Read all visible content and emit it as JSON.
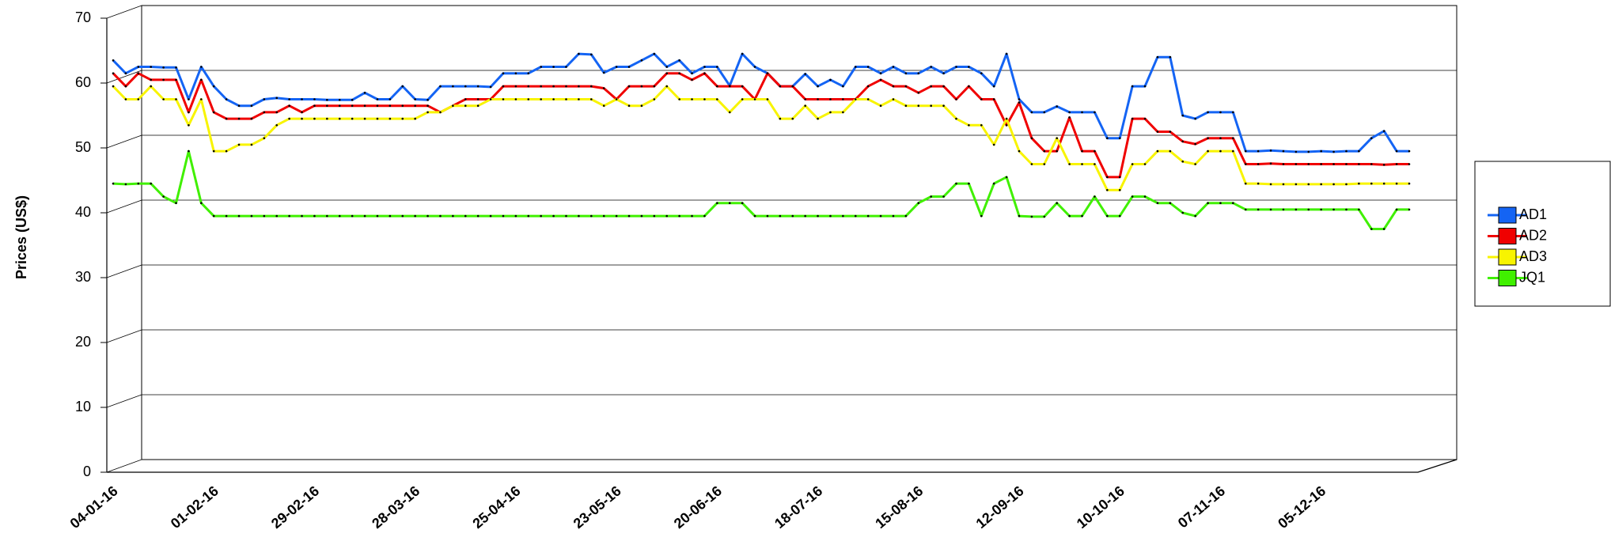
{
  "chart_data": {
    "type": "line",
    "y_label": "Prices (US$)",
    "categories": [
      "04-01-16",
      null,
      null,
      null,
      null,
      null,
      null,
      null,
      "01-02-16",
      null,
      null,
      null,
      null,
      null,
      null,
      null,
      "29-02-16",
      null,
      null,
      null,
      null,
      null,
      null,
      null,
      "28-03-16",
      null,
      null,
      null,
      null,
      null,
      null,
      null,
      "25-04-16",
      null,
      null,
      null,
      null,
      null,
      null,
      null,
      "23-05-16",
      null,
      null,
      null,
      null,
      null,
      null,
      null,
      "20-06-16",
      null,
      null,
      null,
      null,
      null,
      null,
      null,
      "18-07-16",
      null,
      null,
      null,
      null,
      null,
      null,
      null,
      "15-08-16",
      null,
      null,
      null,
      null,
      null,
      null,
      null,
      "12-09-16",
      null,
      null,
      null,
      null,
      null,
      null,
      null,
      "10-10-16",
      null,
      null,
      null,
      null,
      null,
      null,
      null,
      "07-11-16",
      null,
      null,
      null,
      null,
      null,
      null,
      null,
      "05-12-16",
      null,
      null,
      null,
      null,
      null,
      null,
      null
    ],
    "series": [
      {
        "name": "AD1",
        "color": "#1464f4",
        "values": [
          63.5,
          61.5,
          62.5,
          62.5,
          62.4,
          62.4,
          57.5,
          62.5,
          59.5,
          57.5,
          56.5,
          56.5,
          57.5,
          57.7,
          57.5,
          57.5,
          57.5,
          57.4,
          57.4,
          57.4,
          58.5,
          57.5,
          57.5,
          59.5,
          57.5,
          57.4,
          59.5,
          59.5,
          59.5,
          59.5,
          59.4,
          61.5,
          61.5,
          61.5,
          62.5,
          62.5,
          62.5,
          64.5,
          64.4,
          61.6,
          62.5,
          62.5,
          63.5,
          64.5,
          62.5,
          63.5,
          61.5,
          62.5,
          62.5,
          59.6,
          64.5,
          62.5,
          61.5,
          59.5,
          59.5,
          61.4,
          59.5,
          60.5,
          59.5,
          62.5,
          62.5,
          61.5,
          62.5,
          61.5,
          61.5,
          62.5,
          61.5,
          62.5,
          62.5,
          61.5,
          59.5,
          64.5,
          57.5,
          55.5,
          55.5,
          56.4,
          55.5,
          55.5,
          55.5,
          51.5,
          51.5,
          59.5,
          59.5,
          64.0,
          64.0,
          55.0,
          54.5,
          55.5,
          55.5,
          55.5,
          49.5,
          49.5,
          49.6,
          49.5,
          49.4,
          49.4,
          49.5,
          49.4,
          49.5,
          49.5,
          51.5,
          52.6,
          49.5,
          49.5
        ]
      },
      {
        "name": "AD2",
        "color": "#f00000",
        "values": [
          61.5,
          59.5,
          61.5,
          60.5,
          60.5,
          60.5,
          55.5,
          60.5,
          55.5,
          54.5,
          54.5,
          54.5,
          55.5,
          55.5,
          56.5,
          55.5,
          56.5,
          56.5,
          56.5,
          56.5,
          56.5,
          56.5,
          56.5,
          56.5,
          56.5,
          56.5,
          55.5,
          56.5,
          57.5,
          57.5,
          57.5,
          59.5,
          59.5,
          59.5,
          59.5,
          59.5,
          59.5,
          59.5,
          59.5,
          59.2,
          57.5,
          59.5,
          59.5,
          59.5,
          61.5,
          61.5,
          60.5,
          61.5,
          59.5,
          59.5,
          59.5,
          57.5,
          61.5,
          59.5,
          59.5,
          57.5,
          57.5,
          57.5,
          57.5,
          57.5,
          59.5,
          60.5,
          59.5,
          59.5,
          58.5,
          59.5,
          59.5,
          57.5,
          59.5,
          57.5,
          57.5,
          53.5,
          57.0,
          51.5,
          49.5,
          49.5,
          54.7,
          49.5,
          49.5,
          45.5,
          45.5,
          54.5,
          54.5,
          52.5,
          52.5,
          51.0,
          50.6,
          51.5,
          51.5,
          51.5,
          47.5,
          47.5,
          47.6,
          47.5,
          47.5,
          47.5,
          47.5,
          47.5,
          47.5,
          47.5,
          47.5,
          47.4,
          47.5,
          47.5
        ]
      },
      {
        "name": "AD3",
        "color": "#f8f400",
        "values": [
          59.5,
          57.5,
          57.5,
          59.5,
          57.5,
          57.5,
          53.5,
          57.5,
          49.5,
          49.5,
          50.5,
          50.5,
          51.5,
          53.5,
          54.5,
          54.5,
          54.5,
          54.5,
          54.5,
          54.5,
          54.5,
          54.5,
          54.5,
          54.5,
          54.5,
          55.5,
          55.5,
          56.5,
          56.5,
          56.5,
          57.5,
          57.5,
          57.5,
          57.5,
          57.5,
          57.5,
          57.5,
          57.5,
          57.5,
          56.5,
          57.5,
          56.5,
          56.5,
          57.5,
          59.5,
          57.5,
          57.5,
          57.5,
          57.5,
          55.5,
          57.5,
          57.5,
          57.5,
          54.5,
          54.5,
          56.5,
          54.5,
          55.5,
          55.5,
          57.5,
          57.5,
          56.5,
          57.5,
          56.5,
          56.5,
          56.5,
          56.5,
          54.5,
          53.5,
          53.5,
          50.5,
          54.5,
          49.5,
          47.5,
          47.5,
          51.5,
          47.5,
          47.5,
          47.5,
          43.5,
          43.5,
          47.5,
          47.5,
          49.5,
          49.5,
          47.9,
          47.5,
          49.5,
          49.5,
          49.5,
          44.5,
          44.5,
          44.4,
          44.4,
          44.4,
          44.4,
          44.4,
          44.4,
          44.4,
          44.5,
          44.5,
          44.5,
          44.5,
          44.5
        ]
      },
      {
        "name": "JQ1",
        "color": "#40f000",
        "values": [
          44.5,
          44.4,
          44.5,
          44.5,
          42.5,
          41.5,
          49.5,
          41.5,
          39.5,
          39.5,
          39.5,
          39.5,
          39.5,
          39.5,
          39.5,
          39.5,
          39.5,
          39.5,
          39.5,
          39.5,
          39.5,
          39.5,
          39.5,
          39.5,
          39.5,
          39.5,
          39.5,
          39.5,
          39.5,
          39.5,
          39.5,
          39.5,
          39.5,
          39.5,
          39.5,
          39.5,
          39.5,
          39.5,
          39.5,
          39.5,
          39.5,
          39.5,
          39.5,
          39.5,
          39.5,
          39.5,
          39.5,
          39.5,
          41.5,
          41.5,
          41.5,
          39.5,
          39.5,
          39.5,
          39.5,
          39.5,
          39.5,
          39.5,
          39.5,
          39.5,
          39.5,
          39.5,
          39.5,
          39.5,
          41.5,
          42.5,
          42.5,
          44.5,
          44.5,
          39.5,
          44.5,
          45.5,
          39.5,
          39.4,
          39.4,
          41.5,
          39.5,
          39.5,
          42.5,
          39.5,
          39.5,
          42.5,
          42.5,
          41.5,
          41.5,
          40.0,
          39.5,
          41.5,
          41.5,
          41.5,
          40.5,
          40.5,
          40.5,
          40.5,
          40.5,
          40.5,
          40.5,
          40.5,
          40.5,
          40.5,
          37.5,
          37.5,
          40.5,
          40.5
        ]
      }
    ],
    "ylim": [
      0,
      70
    ],
    "yticks": [
      0,
      10,
      20,
      30,
      40,
      50,
      60,
      70
    ],
    "grid": true,
    "legend": "right"
  }
}
